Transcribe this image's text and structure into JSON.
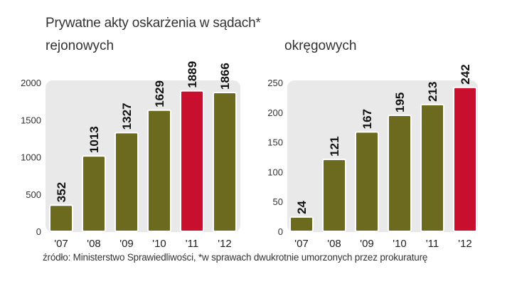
{
  "title": "Prywatne akty oskarżenia w sądach*",
  "source_note": "źródło: Ministerstwo Sprawiedliwości, *w sprawach dwukrotnie umorzonych przez prokuraturę",
  "colors": {
    "bar": "#6b6a1f",
    "highlight": "#c8102e",
    "panel": "#e9e9e9"
  },
  "chart_data": [
    {
      "type": "bar",
      "subtitle": "rejonowych",
      "categories": [
        "'07",
        "'08",
        "'09",
        "'10",
        "'11",
        "'12"
      ],
      "values": [
        352,
        1013,
        1327,
        1629,
        1889,
        1866
      ],
      "highlight": "'11",
      "ylim": [
        0,
        2000
      ],
      "yticks": [
        0,
        500,
        1000,
        1500,
        2000
      ],
      "grid": false
    },
    {
      "type": "bar",
      "subtitle": "okręgowych",
      "categories": [
        "'07",
        "'08",
        "'09",
        "'10",
        "'11",
        "'12"
      ],
      "values": [
        24,
        121,
        167,
        195,
        213,
        242
      ],
      "highlight": "'12",
      "ylim": [
        0,
        250
      ],
      "yticks": [
        0,
        50,
        100,
        150,
        200,
        250
      ],
      "grid": false
    }
  ]
}
